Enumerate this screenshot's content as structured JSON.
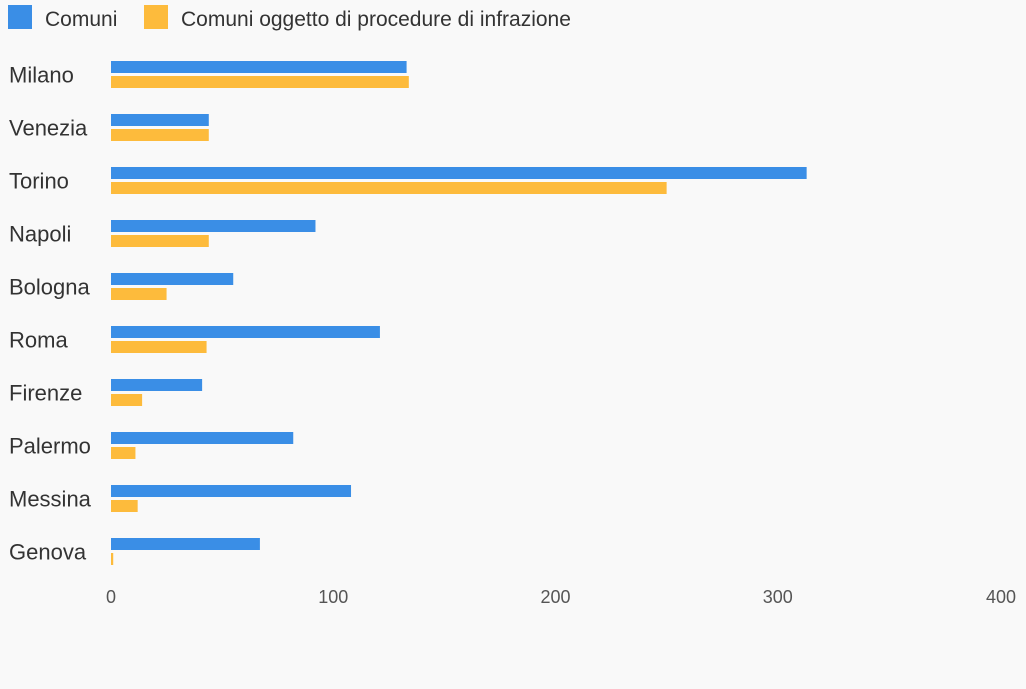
{
  "chart_data": {
    "type": "bar",
    "orientation": "horizontal",
    "categories": [
      "Milano",
      "Venezia",
      "Torino",
      "Napoli",
      "Bologna",
      "Roma",
      "Firenze",
      "Palermo",
      "Messina",
      "Genova"
    ],
    "series": [
      {
        "name": "Comuni",
        "color": "#3a8ee6",
        "values": [
          133,
          44,
          313,
          92,
          55,
          121,
          41,
          82,
          108,
          67
        ]
      },
      {
        "name": "Comuni oggetto di procedure di infrazione",
        "color": "#fdbb3c",
        "values": [
          134,
          44,
          250,
          44,
          25,
          43,
          14,
          11,
          12,
          1
        ]
      }
    ],
    "xlim": [
      0,
      400
    ],
    "xticks": [
      "0",
      "100",
      "200",
      "300",
      "400"
    ],
    "legend_position": "top-left",
    "grid": false
  }
}
